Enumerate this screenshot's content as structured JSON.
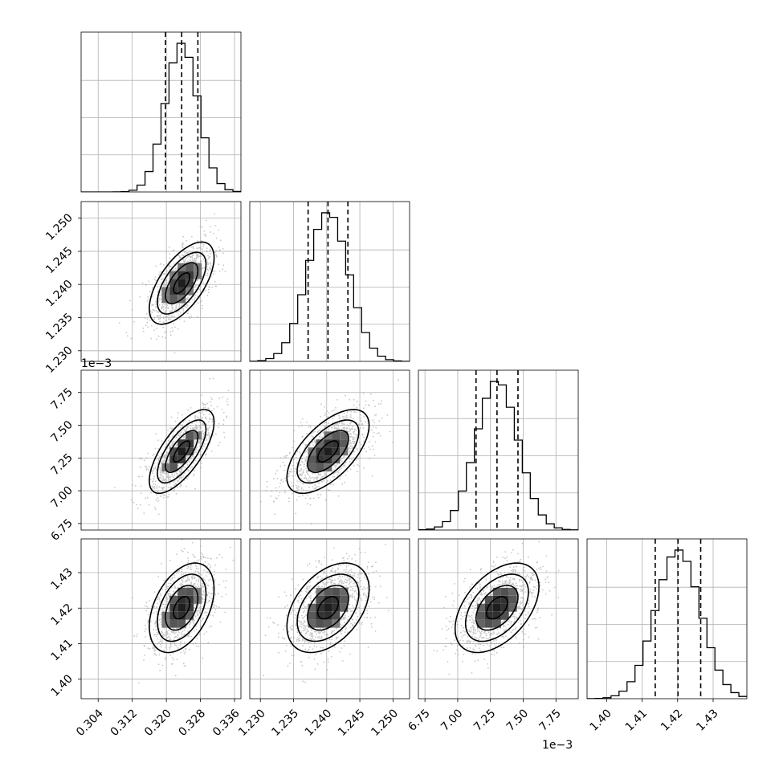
{
  "chart_data": {
    "type": "corner",
    "parameters": [
      {
        "median": 0.3236,
        "sigma": 0.0038,
        "lim": [
          0.3,
          0.3375
        ],
        "ticks": [
          0.304,
          0.312,
          0.32,
          0.328,
          0.336
        ],
        "tick_labels": [
          "0.304",
          "0.312",
          "0.320",
          "0.328",
          "0.336"
        ],
        "quantiles": [
          0.3198,
          0.3236,
          0.3274
        ],
        "offset": ""
      },
      {
        "median": 1.2402,
        "sigma": 0.0031,
        "lim": [
          1.2284,
          1.2525
        ],
        "ticks": [
          1.23,
          1.235,
          1.24,
          1.245,
          1.25
        ],
        "tick_labels": [
          "1.230",
          "1.235",
          "1.240",
          "1.245",
          "1.250"
        ],
        "quantiles": [
          1.2372,
          1.2402,
          1.2432
        ],
        "offset": ""
      },
      {
        "median": 7.3,
        "sigma": 0.16,
        "lim": [
          6.7,
          7.92
        ],
        "ticks": [
          6.75,
          7.0,
          7.25,
          7.5,
          7.75
        ],
        "tick_labels": [
          "6.75",
          "7.00",
          "7.25",
          "7.50",
          "7.75"
        ],
        "quantiles": [
          7.14,
          7.3,
          7.46
        ],
        "offset": "1e−3"
      },
      {
        "median": 1.4201,
        "sigma": 0.0063,
        "lim": [
          1.3945,
          1.4395
        ],
        "ticks": [
          1.4,
          1.41,
          1.42,
          1.43
        ],
        "tick_labels": [
          "1.40",
          "1.41",
          "1.42",
          "1.43"
        ],
        "quantiles": [
          1.4137,
          1.4201,
          1.4265
        ],
        "offset": ""
      }
    ],
    "correlations": [
      [
        1,
        0.62,
        0.7,
        0.42
      ],
      [
        0.62,
        1,
        0.62,
        0.42
      ],
      [
        0.7,
        0.62,
        1,
        0.47
      ],
      [
        0.42,
        0.42,
        0.47,
        1
      ]
    ],
    "histogram_bins": 20,
    "contour_levels_sigma": [
      0.5,
      1.0,
      1.5,
      2.0
    ],
    "grid": true,
    "colors": {
      "points": "#9a9a9a",
      "lines": "#000000",
      "grid": "#b0b0b0"
    }
  }
}
